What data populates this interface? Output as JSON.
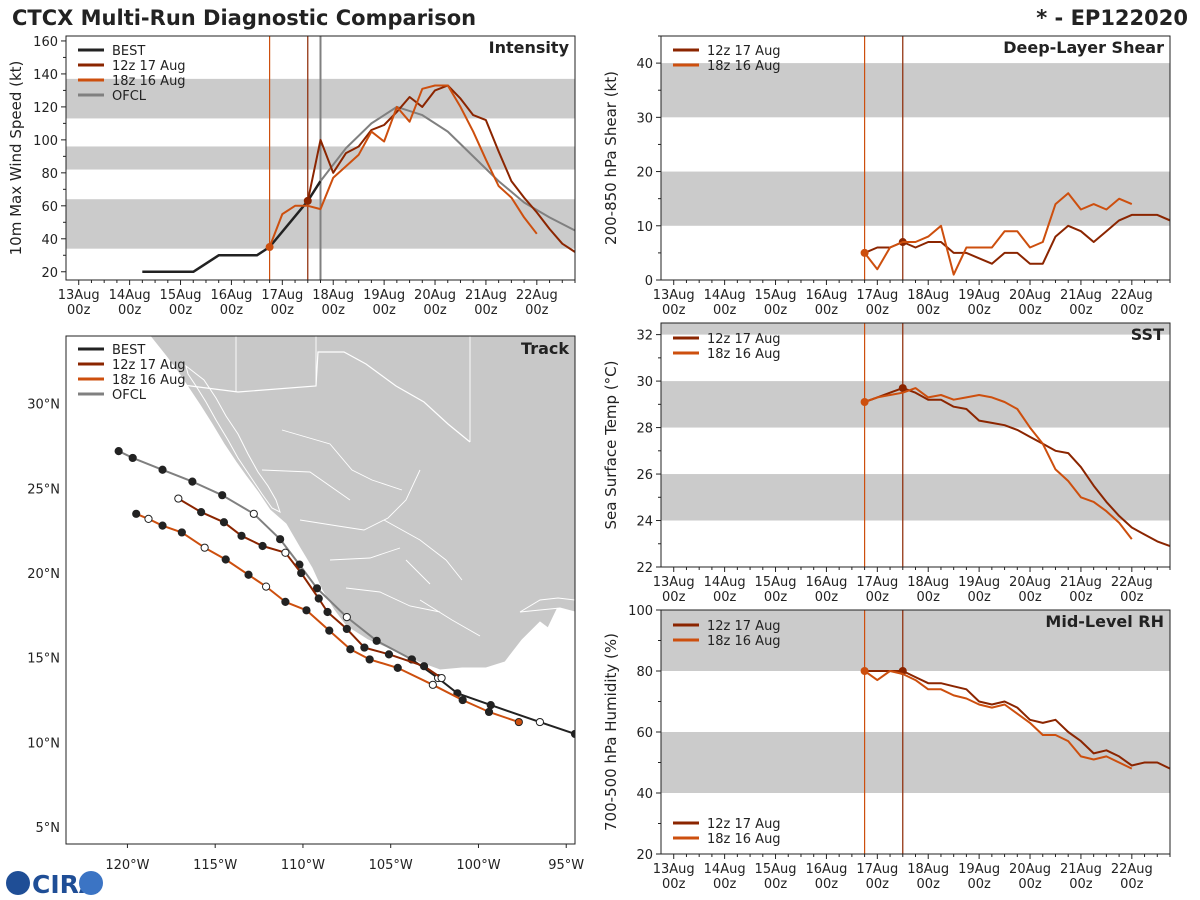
{
  "title": "CTCX Multi-Run Diagnostic Comparison",
  "storm_id": "* - EP122020",
  "logo_text": "CIRA",
  "colors": {
    "best": "#222222",
    "run_12z": "#8B2500",
    "run_18z": "#CD4F0E",
    "ofcl": "#808080",
    "band": "#CBCBCB",
    "land": "#C8C8C8",
    "border": "#FFFFFF"
  },
  "time_ticks": [
    {
      "day": "13Aug",
      "hour": "00z"
    },
    {
      "day": "14Aug",
      "hour": "00z"
    },
    {
      "day": "15Aug",
      "hour": "00z"
    },
    {
      "day": "16Aug",
      "hour": "00z"
    },
    {
      "day": "17Aug",
      "hour": "00z"
    },
    {
      "day": "18Aug",
      "hour": "00z"
    },
    {
      "day": "19Aug",
      "hour": "00z"
    },
    {
      "day": "20Aug",
      "hour": "00z"
    },
    {
      "day": "21Aug",
      "hour": "00z"
    },
    {
      "day": "22Aug",
      "hour": "00z"
    }
  ],
  "chart_data": [
    {
      "id": "intensity",
      "type": "line",
      "panel_label": "Intensity",
      "ylabel": "10m Max Wind Speed (kt)",
      "xlim": [
        -0.25,
        9.75
      ],
      "ylim": [
        15,
        163
      ],
      "yticks": [
        20,
        40,
        60,
        80,
        100,
        120,
        140,
        160
      ],
      "bands": [
        [
          34,
          64
        ],
        [
          82,
          96
        ],
        [
          113,
          137
        ]
      ],
      "vlines": [
        {
          "x": 3.75,
          "color": "run_18z"
        },
        {
          "x": 4.5,
          "color": "run_12z"
        },
        {
          "x": 4.75,
          "color": "ofcl",
          "width": 2
        }
      ],
      "legend": [
        {
          "name": "BEST",
          "color": "best"
        },
        {
          "name": "12z 17 Aug",
          "color": "run_12z"
        },
        {
          "name": "18z 16 Aug",
          "color": "run_18z"
        },
        {
          "name": "OFCL",
          "color": "ofcl"
        }
      ],
      "series": [
        {
          "name": "BEST",
          "color": "best",
          "width": 2.5,
          "x": [
            1.25,
            2.25,
            2.75,
            3.5,
            3.75,
            4.5,
            4.75
          ],
          "y": [
            20,
            20,
            30,
            30,
            35,
            63,
            75
          ]
        },
        {
          "name": "OFCL",
          "color": "ofcl",
          "width": 2,
          "x": [
            4.75,
            5.25,
            5.75,
            6.25,
            6.75,
            7.25,
            7.75,
            8.25,
            8.75,
            9.25,
            9.75
          ],
          "y": [
            75,
            95,
            110,
            120,
            115,
            105,
            90,
            75,
            62,
            53,
            45
          ]
        },
        {
          "name": "12z 17 Aug",
          "color": "run_12z",
          "width": 2,
          "x": [
            4.5,
            4.75,
            5.0,
            5.25,
            5.5,
            5.75,
            6.0,
            6.25,
            6.5,
            6.75,
            7.0,
            7.25,
            7.5,
            7.75,
            8.0,
            8.25,
            8.5,
            8.75,
            9.0,
            9.25,
            9.5,
            9.75
          ],
          "y": [
            63,
            100,
            80,
            92,
            96,
            106,
            109,
            117,
            126,
            120,
            130,
            133,
            125,
            115,
            112,
            93,
            75,
            65,
            56,
            46,
            37,
            32
          ],
          "marker": 0
        },
        {
          "name": "18z 16 Aug",
          "color": "run_18z",
          "width": 2,
          "x": [
            3.75,
            4.0,
            4.25,
            4.5,
            4.75,
            5.0,
            5.25,
            5.5,
            5.75,
            6.0,
            6.25,
            6.5,
            6.75,
            7.0,
            7.25,
            7.5,
            7.75,
            8.0,
            8.25,
            8.5,
            8.75,
            9.0
          ],
          "y": [
            35,
            55,
            60,
            60,
            58,
            77,
            84,
            91,
            105,
            99,
            120,
            111,
            131,
            133,
            133,
            120,
            105,
            88,
            72,
            65,
            53,
            43
          ],
          "marker": 0
        }
      ]
    },
    {
      "id": "shear",
      "type": "line",
      "panel_label": "Deep-Layer Shear",
      "ylabel": "200-850 hPa Shear (kt)",
      "xlim": [
        -0.25,
        9.75
      ],
      "ylim": [
        0,
        45
      ],
      "yticks": [
        0,
        10,
        20,
        30,
        40
      ],
      "bands": [
        [
          10,
          20
        ],
        [
          30,
          40
        ]
      ],
      "vlines": [
        {
          "x": 3.75,
          "color": "run_18z"
        },
        {
          "x": 4.5,
          "color": "run_12z"
        }
      ],
      "legend": [
        {
          "name": "12z 17 Aug",
          "color": "run_12z"
        },
        {
          "name": "18z 16 Aug",
          "color": "run_18z"
        }
      ],
      "series": [
        {
          "name": "12z 17 Aug",
          "color": "run_12z",
          "width": 2,
          "x": [
            3.75,
            4.0,
            4.25,
            4.5,
            4.75,
            5.0,
            5.25,
            5.5,
            5.75,
            6.0,
            6.25,
            6.5,
            6.75,
            7.0,
            7.25,
            7.5,
            7.75,
            8.0,
            8.25,
            8.5,
            8.75,
            9.0,
            9.25,
            9.5,
            9.75
          ],
          "y": [
            5,
            6,
            6,
            7,
            6,
            7,
            7,
            5,
            5,
            4,
            3,
            5,
            5,
            3,
            3,
            8,
            10,
            9,
            7,
            9,
            11,
            12,
            12,
            12,
            11
          ],
          "marker": 3
        },
        {
          "name": "18z 16 Aug",
          "color": "run_18z",
          "width": 2,
          "x": [
            3.75,
            4.0,
            4.25,
            4.5,
            4.75,
            5.0,
            5.25,
            5.5,
            5.75,
            6.0,
            6.25,
            6.5,
            6.75,
            7.0,
            7.25,
            7.5,
            7.75,
            8.0,
            8.25,
            8.5,
            8.75,
            9.0
          ],
          "y": [
            5,
            2,
            6,
            7,
            7,
            8,
            10,
            1,
            6,
            6,
            6,
            9,
            9,
            6,
            7,
            14,
            16,
            13,
            14,
            13,
            15,
            14
          ],
          "marker": 0
        }
      ]
    },
    {
      "id": "sst",
      "type": "line",
      "panel_label": "SST",
      "ylabel": "Sea Surface Temp (°C)",
      "xlim": [
        -0.25,
        9.75
      ],
      "ylim": [
        22,
        32.5
      ],
      "yticks": [
        22,
        24,
        26,
        28,
        30,
        32
      ],
      "bands": [
        [
          24,
          26
        ],
        [
          28,
          30
        ],
        [
          32,
          32.5
        ]
      ],
      "vlines": [
        {
          "x": 3.75,
          "color": "run_18z"
        },
        {
          "x": 4.5,
          "color": "run_12z"
        }
      ],
      "legend": [
        {
          "name": "12z 17 Aug",
          "color": "run_12z"
        },
        {
          "name": "18z 16 Aug",
          "color": "run_18z"
        }
      ],
      "series": [
        {
          "name": "12z 17 Aug",
          "color": "run_12z",
          "width": 2,
          "x": [
            3.75,
            4.0,
            4.25,
            4.5,
            4.75,
            5.0,
            5.25,
            5.5,
            5.75,
            6.0,
            6.25,
            6.5,
            6.75,
            7.0,
            7.25,
            7.5,
            7.75,
            8.0,
            8.25,
            8.5,
            8.75,
            9.0,
            9.25,
            9.5,
            9.75
          ],
          "y": [
            29.1,
            29.3,
            29.5,
            29.7,
            29.5,
            29.2,
            29.2,
            28.9,
            28.8,
            28.3,
            28.2,
            28.1,
            27.9,
            27.6,
            27.3,
            27.0,
            26.9,
            26.3,
            25.5,
            24.8,
            24.2,
            23.7,
            23.4,
            23.1,
            22.9
          ],
          "marker": 3
        },
        {
          "name": "18z 16 Aug",
          "color": "run_18z",
          "width": 2,
          "x": [
            3.75,
            4.0,
            4.25,
            4.5,
            4.75,
            5.0,
            5.25,
            5.5,
            5.75,
            6.0,
            6.25,
            6.5,
            6.75,
            7.0,
            7.25,
            7.5,
            7.75,
            8.0,
            8.25,
            8.5,
            8.75,
            9.0
          ],
          "y": [
            29.1,
            29.3,
            29.4,
            29.5,
            29.7,
            29.3,
            29.4,
            29.2,
            29.3,
            29.4,
            29.3,
            29.1,
            28.8,
            28.0,
            27.3,
            26.2,
            25.7,
            25.0,
            24.8,
            24.4,
            23.9,
            23.2
          ],
          "marker": 0
        }
      ]
    },
    {
      "id": "rh",
      "type": "line",
      "panel_label": "Mid-Level RH",
      "ylabel": "700-500 hPa Humidity (%)",
      "xlim": [
        -0.25,
        9.75
      ],
      "ylim": [
        20,
        100
      ],
      "yticks": [
        20,
        40,
        60,
        80,
        100
      ],
      "bands": [
        [
          40,
          60
        ],
        [
          80,
          100
        ]
      ],
      "vlines": [
        {
          "x": 3.75,
          "color": "run_18z"
        },
        {
          "x": 4.5,
          "color": "run_12z"
        }
      ],
      "legend": [
        {
          "name": "12z 17 Aug",
          "color": "run_12z"
        },
        {
          "name": "18z 16 Aug",
          "color": "run_18z"
        }
      ],
      "series": [
        {
          "name": "12z 17 Aug",
          "color": "run_12z",
          "width": 2,
          "x": [
            3.75,
            4.0,
            4.25,
            4.5,
            4.75,
            5.0,
            5.25,
            5.5,
            5.75,
            6.0,
            6.25,
            6.5,
            6.75,
            7.0,
            7.25,
            7.5,
            7.75,
            8.0,
            8.25,
            8.5,
            8.75,
            9.0,
            9.25,
            9.5,
            9.75
          ],
          "y": [
            80,
            80,
            80,
            80,
            78,
            76,
            76,
            75,
            74,
            70,
            69,
            70,
            68,
            64,
            63,
            64,
            60,
            57,
            53,
            54,
            52,
            49,
            50,
            50,
            48
          ],
          "marker": 3
        },
        {
          "name": "18z 16 Aug",
          "color": "run_18z",
          "width": 2,
          "x": [
            3.75,
            4.0,
            4.25,
            4.5,
            4.75,
            5.0,
            5.25,
            5.5,
            5.75,
            6.0,
            6.25,
            6.5,
            6.75,
            7.0,
            7.25,
            7.5,
            7.75,
            8.0,
            8.25,
            8.5,
            8.75,
            9.0
          ],
          "y": [
            80,
            77,
            80,
            79,
            77,
            74,
            74,
            72,
            71,
            69,
            68,
            69,
            66,
            63,
            59,
            59,
            57,
            52,
            51,
            52,
            50,
            48
          ],
          "marker": 0
        }
      ]
    },
    {
      "id": "track",
      "type": "scatter",
      "panel_label": "Track",
      "xlabel_ticks": [
        "120°W",
        "115°W",
        "110°W",
        "105°W",
        "100°W",
        "95°W"
      ],
      "xtick_values": [
        -120,
        -115,
        -110,
        -105,
        -100,
        -95
      ],
      "ylabel_ticks": [
        "5°N",
        "10°N",
        "15°N",
        "20°N",
        "25°N",
        "30°N"
      ],
      "ytick_values": [
        5,
        10,
        15,
        20,
        25,
        30
      ],
      "xlim": [
        -123.5,
        -94.5
      ],
      "ylim": [
        4,
        34
      ],
      "legend": [
        {
          "name": "BEST",
          "color": "best"
        },
        {
          "name": "12z 17 Aug",
          "color": "run_12z"
        },
        {
          "name": "18z 16 Aug",
          "color": "run_18z"
        },
        {
          "name": "OFCL",
          "color": "ofcl"
        }
      ],
      "series": [
        {
          "name": "BEST",
          "color": "best",
          "width": 2,
          "lon": [
            -94.5,
            -96.5,
            -99.3,
            -101.2,
            -102.3,
            -103.8
          ],
          "lat": [
            10.5,
            11.2,
            12.2,
            12.9,
            13.8,
            14.9
          ],
          "open": [
            false,
            true,
            false,
            false,
            true,
            false
          ]
        },
        {
          "name": "OFCL",
          "color": "ofcl",
          "width": 2,
          "lon": [
            -103.8,
            -105.8,
            -107.5,
            -109.2,
            -110.2,
            -111.3,
            -112.8,
            -114.6,
            -116.3,
            -118.0,
            -119.7,
            -120.5
          ],
          "lat": [
            14.9,
            16.0,
            17.4,
            19.1,
            20.5,
            22.0,
            23.5,
            24.6,
            25.4,
            26.1,
            26.8,
            27.2
          ],
          "open": [
            false,
            false,
            true,
            false,
            false,
            false,
            true,
            false,
            false,
            false,
            false,
            false
          ]
        },
        {
          "name": "12z 17 Aug",
          "color": "run_12z",
          "width": 2,
          "lon": [
            -102.1,
            -103.1,
            -105.1,
            -106.5,
            -107.5,
            -108.6,
            -109.1,
            -110.1,
            -111.0,
            -112.3,
            -113.5,
            -114.5,
            -115.8,
            -117.1
          ],
          "lat": [
            13.8,
            14.5,
            15.2,
            15.6,
            16.7,
            17.7,
            18.5,
            20.0,
            21.2,
            21.6,
            22.2,
            23.0,
            23.6,
            24.4
          ],
          "open": [
            true,
            false,
            false,
            false,
            false,
            false,
            false,
            false,
            true,
            false,
            false,
            false,
            false,
            true
          ]
        },
        {
          "name": "18z 16 Aug",
          "color": "run_18z",
          "width": 2,
          "lon": [
            -97.7,
            -99.4,
            -100.9,
            -102.6,
            -104.6,
            -106.2,
            -107.3,
            -108.5,
            -109.8,
            -111.0,
            -112.1,
            -113.1,
            -114.4,
            -115.6,
            -116.9,
            -118.0,
            -118.8,
            -119.5
          ],
          "lat": [
            11.2,
            11.8,
            12.5,
            13.4,
            14.4,
            14.9,
            15.5,
            16.6,
            17.8,
            18.3,
            19.2,
            19.9,
            20.8,
            21.5,
            22.4,
            22.8,
            23.2,
            23.5
          ],
          "open": [
            false,
            false,
            false,
            true,
            false,
            false,
            false,
            false,
            false,
            false,
            true,
            false,
            false,
            true,
            false,
            false,
            true,
            false
          ]
        }
      ]
    }
  ]
}
